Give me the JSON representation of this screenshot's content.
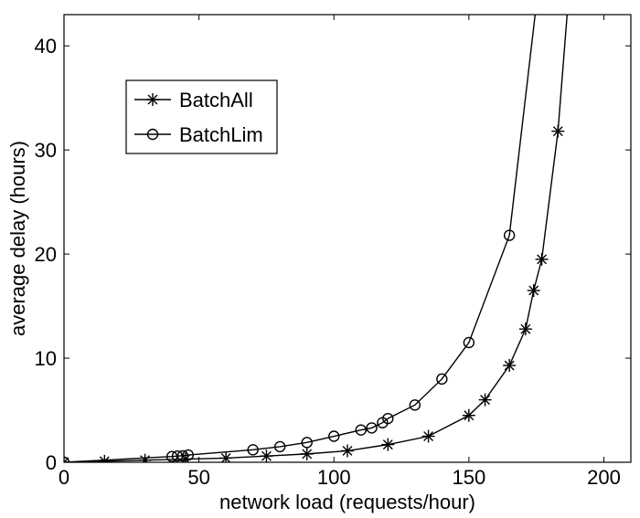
{
  "chart_data": {
    "type": "line",
    "title": "",
    "xlabel": "network load (requests/hour)",
    "ylabel": "average delay (hours)",
    "xlim": [
      0,
      210
    ],
    "ylim": [
      0,
      43
    ],
    "xticks": [
      0,
      50,
      100,
      150,
      200
    ],
    "yticks": [
      0,
      10,
      20,
      30,
      40
    ],
    "grid": false,
    "legend_position": "upper-left",
    "series": [
      {
        "name": "BatchAll",
        "marker": "asterisk",
        "x": [
          0,
          15,
          30,
          45,
          60,
          75,
          90,
          105,
          120,
          135,
          150,
          156,
          165,
          171,
          174,
          177,
          183,
          187
        ],
        "y": [
          0,
          0.1,
          0.2,
          0.3,
          0.4,
          0.6,
          0.8,
          1.1,
          1.7,
          2.5,
          4.5,
          6.0,
          9.3,
          12.8,
          16.5,
          19.5,
          31.8,
          45
        ]
      },
      {
        "name": "BatchLim",
        "marker": "circle",
        "x": [
          0,
          40,
          42,
          44,
          46,
          70,
          80,
          90,
          100,
          110,
          114,
          118,
          120,
          130,
          140,
          150,
          165,
          175
        ],
        "y": [
          0,
          0.55,
          0.6,
          0.62,
          0.7,
          1.2,
          1.5,
          1.9,
          2.5,
          3.1,
          3.3,
          3.8,
          4.2,
          5.5,
          8.0,
          11.5,
          21.8,
          44
        ]
      }
    ]
  }
}
